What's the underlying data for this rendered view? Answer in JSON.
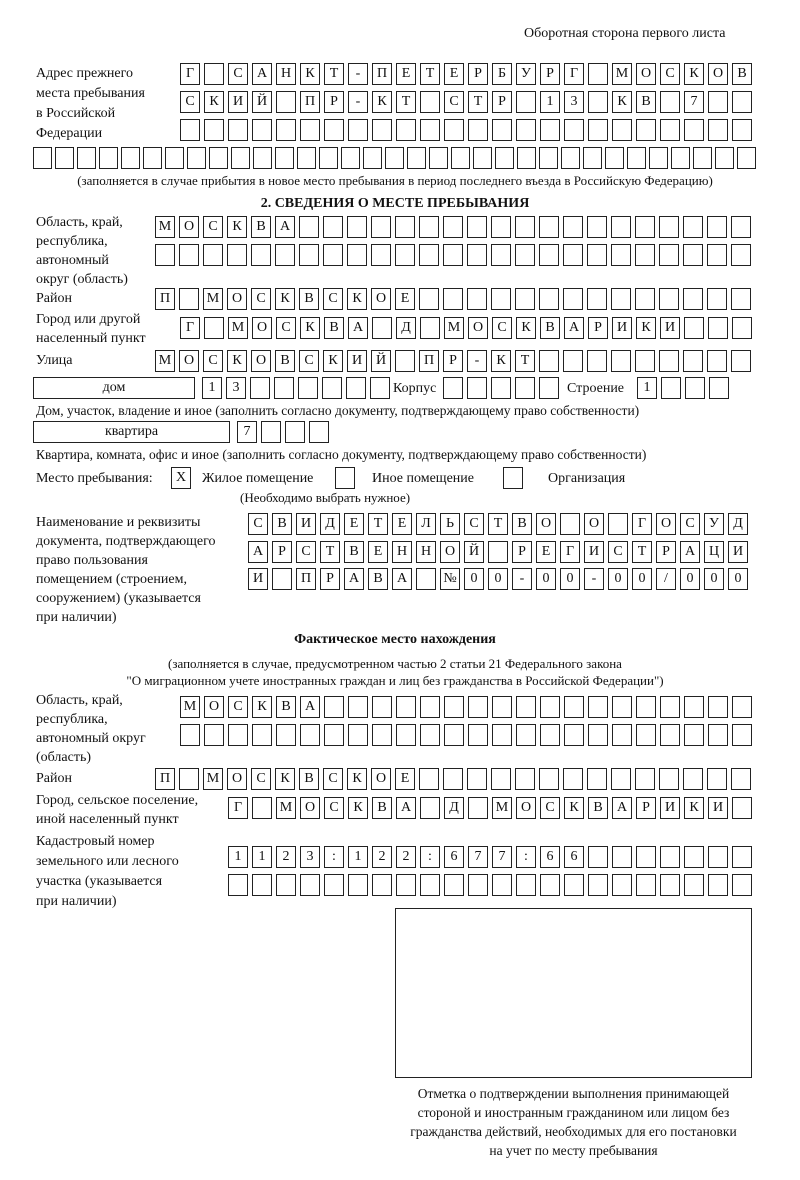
{
  "header": "Оборотная сторона первого листа",
  "prev": {
    "label": [
      "Адрес прежнего",
      "места пребывания",
      "в Российской",
      "Федерации"
    ],
    "rows": [
      [
        "Г",
        "",
        "С",
        "А",
        "Н",
        "К",
        "Т",
        "-",
        "П",
        "Е",
        "Т",
        "Е",
        "Р",
        "Б",
        "У",
        "Р",
        "Г",
        "",
        "М",
        "О",
        "С",
        "К",
        "О",
        "В"
      ],
      [
        "С",
        "К",
        "И",
        "Й",
        "",
        "П",
        "Р",
        "-",
        "К",
        "Т",
        "",
        "С",
        "Т",
        "Р",
        "",
        "1",
        "3",
        "",
        "К",
        "В",
        "",
        "7",
        "",
        ""
      ],
      [
        "",
        "",
        "",
        "",
        "",
        "",
        "",
        "",
        "",
        "",
        "",
        "",
        "",
        "",
        "",
        "",
        "",
        "",
        "",
        "",
        "",
        "",
        "",
        ""
      ],
      [
        "",
        "",
        "",
        "",
        "",
        "",
        "",
        "",
        "",
        "",
        "",
        "",
        "",
        "",
        "",
        "",
        "",
        "",
        "",
        "",
        "",
        "",
        "",
        "",
        "",
        "",
        "",
        "",
        "",
        "",
        "",
        "",
        ""
      ]
    ],
    "note": "(заполняется в случае прибытия в новое место пребывания в период последнего въезда в Российскую Федерацию)"
  },
  "s2": {
    "title": "2. СВЕДЕНИЯ О МЕСТЕ ПРЕБЫВАНИЯ",
    "region_label": [
      "Область, край,",
      "республика,",
      "автономный",
      "округ (область)"
    ],
    "region": [
      [
        "М",
        "О",
        "С",
        "К",
        "В",
        "А",
        "",
        "",
        "",
        "",
        "",
        "",
        "",
        "",
        "",
        "",
        "",
        "",
        "",
        "",
        "",
        "",
        "",
        "",
        ""
      ],
      [
        "",
        "",
        "",
        "",
        "",
        "",
        "",
        "",
        "",
        "",
        "",
        "",
        "",
        "",
        "",
        "",
        "",
        "",
        "",
        "",
        "",
        "",
        "",
        "",
        ""
      ]
    ],
    "district_label": "Район",
    "district": [
      "П",
      "",
      "М",
      "О",
      "С",
      "К",
      "В",
      "С",
      "К",
      "О",
      "Е",
      "",
      "",
      "",
      "",
      "",
      "",
      "",
      "",
      "",
      "",
      "",
      "",
      "",
      ""
    ],
    "city_label": [
      "Город или другой",
      "населенный пункт"
    ],
    "city": [
      "Г",
      "",
      "М",
      "О",
      "С",
      "К",
      "В",
      "А",
      "",
      "Д",
      "",
      "М",
      "О",
      "С",
      "К",
      "В",
      "А",
      "Р",
      "И",
      "К",
      "И",
      "",
      "",
      ""
    ],
    "street_label": "Улица",
    "street": [
      "М",
      "О",
      "С",
      "К",
      "О",
      "В",
      "С",
      "К",
      "И",
      "Й",
      "",
      "П",
      "Р",
      "-",
      "К",
      "Т",
      "",
      "",
      "",
      "",
      "",
      "",
      "",
      "",
      ""
    ],
    "house_type": "дом",
    "house": [
      "1",
      "3",
      "",
      "",
      "",
      "",
      "",
      ""
    ],
    "korpus_label": "Корпус",
    "korpus": [
      "",
      "",
      "",
      "",
      ""
    ],
    "stroenie_label": "Строение",
    "stroenie": [
      "1",
      "",
      "",
      ""
    ],
    "house_note": "Дом, участок, владение и иное (заполнить согласно документу, подтверждающему право собственности)",
    "flat_type": "квартира",
    "flat": [
      "7",
      "",
      "",
      ""
    ],
    "flat_note": "Квартира, комната, офис и иное (заполнить согласно документу, подтверждающему право собственности)",
    "place_label": "Место пребывания:",
    "options": [
      {
        "mark": "X",
        "label": "Жилое помещение"
      },
      {
        "mark": "",
        "label": "Иное помещение"
      },
      {
        "mark": "",
        "label": "Организация"
      }
    ],
    "choose_note": "(Необходимо выбрать нужное)",
    "doc_label": [
      "Наименование и реквизиты",
      "документа, подтверждающего",
      "право пользования",
      "помещением (строением,",
      "сооружением) (указывается",
      "при наличии)"
    ],
    "doc": [
      [
        "С",
        "В",
        "И",
        "Д",
        "Е",
        "Т",
        "Е",
        "Л",
        "Ь",
        "С",
        "Т",
        "В",
        "О",
        "",
        "О",
        "",
        "Г",
        "О",
        "С",
        "У",
        "Д"
      ],
      [
        "А",
        "Р",
        "С",
        "Т",
        "В",
        "Е",
        "Н",
        "Н",
        "О",
        "Й",
        "",
        "Р",
        "Е",
        "Г",
        "И",
        "С",
        "Т",
        "Р",
        "А",
        "Ц",
        "И"
      ],
      [
        "И",
        "",
        "П",
        "Р",
        "А",
        "В",
        "А",
        "",
        "№",
        "0",
        "0",
        "-",
        "0",
        "0",
        "-",
        "0",
        "0",
        "/",
        "0",
        "0",
        "0"
      ]
    ]
  },
  "actual": {
    "title": "Фактическое место нахождения",
    "note": [
      "(заполняется в случае, предусмотренном частью 2 статьи 21 Федерального закона",
      "\"О миграционном учете иностранных граждан и лиц без гражданства в Российской Федерации\")"
    ],
    "region_label": [
      "Область, край,",
      "республика,",
      "автономный округ",
      "(область)"
    ],
    "region": [
      [
        "М",
        "О",
        "С",
        "К",
        "В",
        "А",
        "",
        "",
        "",
        "",
        "",
        "",
        "",
        "",
        "",
        "",
        "",
        "",
        "",
        "",
        "",
        "",
        "",
        ""
      ],
      [
        "",
        "",
        "",
        "",
        "",
        "",
        "",
        "",
        "",
        "",
        "",
        "",
        "",
        "",
        "",
        "",
        "",
        "",
        "",
        "",
        "",
        "",
        "",
        ""
      ]
    ],
    "district_label": "Район",
    "district": [
      "П",
      "",
      "М",
      "О",
      "С",
      "К",
      "В",
      "С",
      "К",
      "О",
      "Е",
      "",
      "",
      "",
      "",
      "",
      "",
      "",
      "",
      "",
      "",
      "",
      "",
      "",
      ""
    ],
    "city_label": [
      "Город, сельское поселение,",
      "иной населенный пункт"
    ],
    "city": [
      "Г",
      "",
      "М",
      "О",
      "С",
      "К",
      "В",
      "А",
      "",
      "Д",
      "",
      "М",
      "О",
      "С",
      "К",
      "В",
      "А",
      "Р",
      "И",
      "К",
      "И",
      ""
    ],
    "cadastr_label": [
      "Кадастровый номер",
      "земельного или лесного",
      "участка (указывается",
      "при наличии)"
    ],
    "cadastr": [
      [
        "1",
        "1",
        "2",
        "3",
        ":",
        "1",
        "2",
        "2",
        ":",
        "6",
        "7",
        "7",
        ":",
        "6",
        "6",
        "",
        "",
        "",
        "",
        "",
        "",
        ""
      ],
      [
        "",
        "",
        "",
        "",
        "",
        "",
        "",
        "",
        "",
        "",
        "",
        "",
        "",
        "",
        "",
        "",
        "",
        "",
        "",
        "",
        "",
        ""
      ]
    ]
  },
  "stamp_caption": [
    "Отметка о подтверждении выполнения принимающей",
    "стороной и иностранным гражданином или лицом без",
    "гражданства действий, необходимых для его постановки",
    "на учет по месту пребывания"
  ]
}
